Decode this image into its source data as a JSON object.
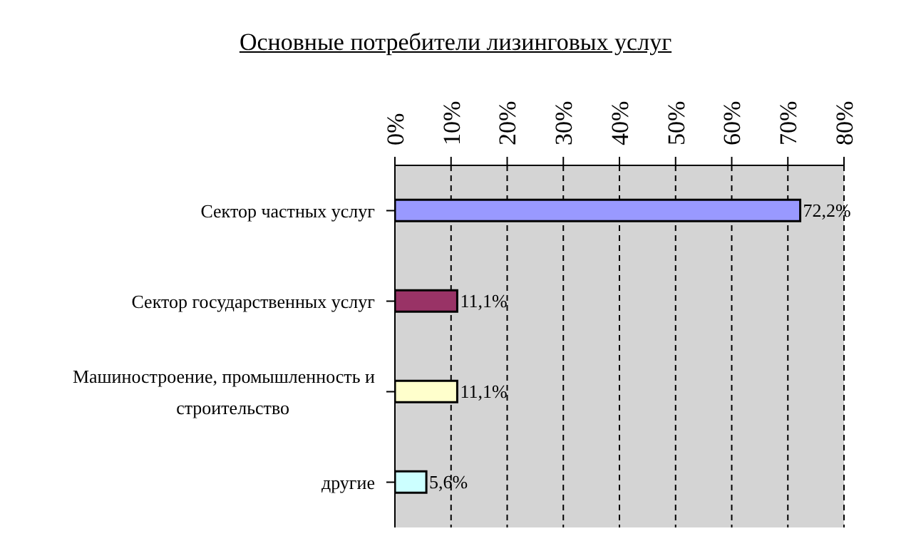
{
  "chart_data": {
    "type": "bar",
    "orientation": "horizontal",
    "title": "Основные потребители лизинговых услуг",
    "categories": [
      "Сектор частных услуг",
      "Сектор государственных услуг",
      "Машиностроение, промышленность и строительство",
      "другие"
    ],
    "values": [
      72.2,
      11.1,
      11.1,
      5.6
    ],
    "colors": [
      "#9999ff",
      "#993366",
      "#ffffcc",
      "#ccffff"
    ],
    "value_labels": [
      "72,2%",
      "11,1%",
      "11,1%",
      "5,6%"
    ],
    "xlim": [
      0,
      80
    ],
    "xticks": [
      {
        "value": 0,
        "label": "0%"
      },
      {
        "value": 10,
        "label": "10%"
      },
      {
        "value": 20,
        "label": "20%"
      },
      {
        "value": 30,
        "label": "30%"
      },
      {
        "value": 40,
        "label": "40%"
      },
      {
        "value": 50,
        "label": "50%"
      },
      {
        "value": 60,
        "label": "60%"
      },
      {
        "value": 70,
        "label": "70%"
      },
      {
        "value": 80,
        "label": "80%"
      }
    ],
    "grid": "x"
  }
}
